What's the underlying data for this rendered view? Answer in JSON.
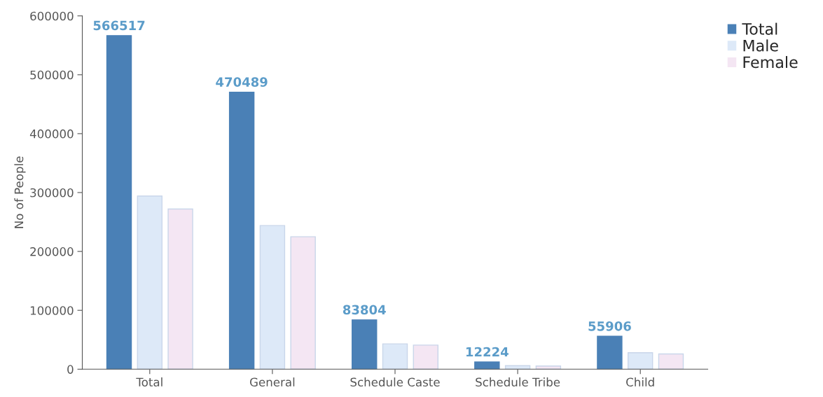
{
  "chart_data": {
    "type": "bar",
    "ylabel": "No of People",
    "categories": [
      "Total",
      "General",
      "Schedule Caste",
      "Schedule Tribe",
      "Child"
    ],
    "series": [
      {
        "name": "Total",
        "color": "#4a80b6",
        "values": [
          566517,
          470489,
          83804,
          12224,
          55906
        ],
        "value_labels": [
          "566517",
          "470489",
          "83804",
          "12224",
          "55906"
        ]
      },
      {
        "name": "Male",
        "color": "#dde9f8",
        "values": [
          294000,
          244000,
          43000,
          6000,
          28000
        ]
      },
      {
        "name": "Female",
        "color": "#f4e6f3",
        "values": [
          272000,
          225000,
          41000,
          5500,
          26000
        ]
      }
    ],
    "ylim": [
      0,
      600000
    ],
    "yticks": [
      0,
      100000,
      200000,
      300000,
      400000,
      500000,
      600000
    ],
    "grid": false,
    "legend": "top right"
  }
}
